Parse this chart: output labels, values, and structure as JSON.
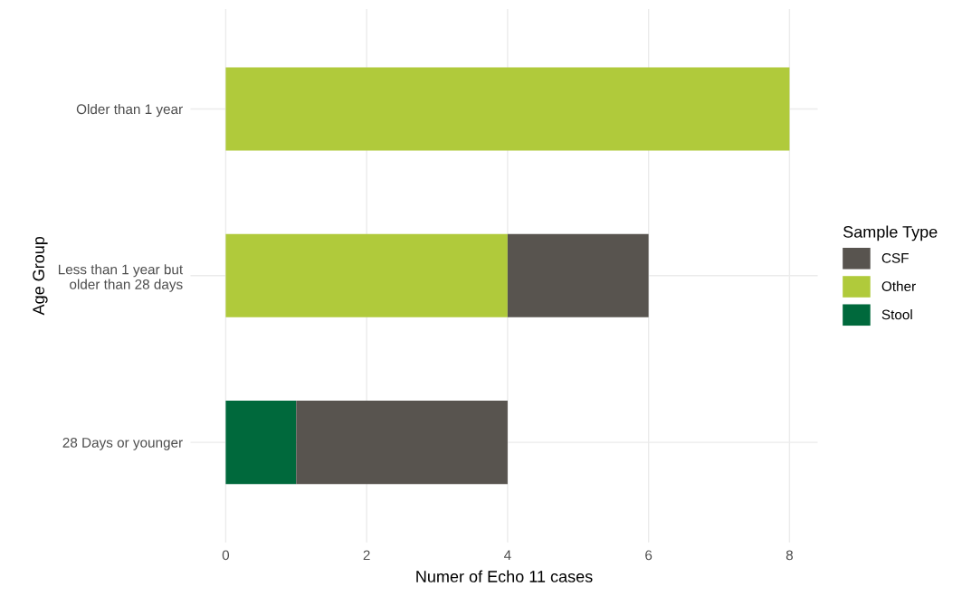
{
  "chart_data": {
    "type": "bar",
    "orientation": "horizontal",
    "stacked": true,
    "xlabel": "Numer of Echo 11 cases",
    "ylabel": "Age Group",
    "legend_title": "Sample Type",
    "categories": [
      "Older than 1 year",
      "Less than 1 year but\nolder than 28 days",
      "28 Days or younger"
    ],
    "series": [
      {
        "name": "Stool",
        "color": "#00693c",
        "values": [
          0,
          0,
          1
        ]
      },
      {
        "name": "Other",
        "color": "#b0ca3b",
        "values": [
          8,
          4,
          0
        ]
      },
      {
        "name": "CSF",
        "color": "#58544f",
        "values": [
          0,
          2,
          3
        ]
      }
    ],
    "xlim": [
      -0.5,
      8.4
    ],
    "xticks": [
      0,
      2,
      4,
      6,
      8
    ],
    "grid": true,
    "legend": "right"
  }
}
